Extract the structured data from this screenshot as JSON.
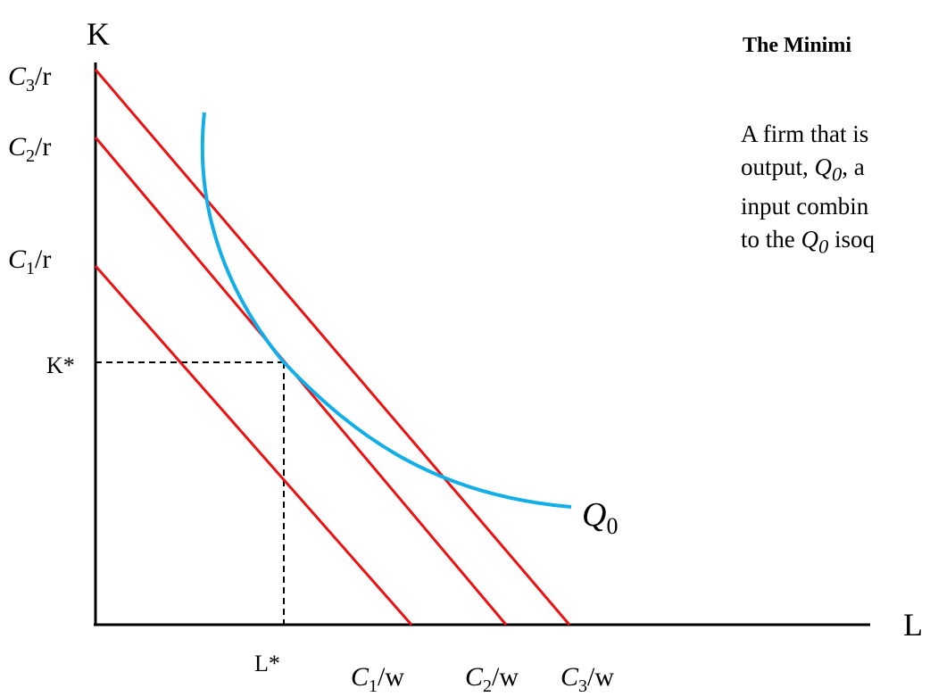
{
  "diagram": {
    "axis_labels": {
      "y": "K",
      "x": "L"
    },
    "y_intercept_labels": [
      {
        "base": "C",
        "sub": "3",
        "suffix": "/r"
      },
      {
        "base": "C",
        "sub": "2",
        "suffix": "/r"
      },
      {
        "base": "C",
        "sub": "1",
        "suffix": "/r"
      }
    ],
    "x_intercept_labels": [
      {
        "base": "C",
        "sub": "1",
        "suffix": "/w"
      },
      {
        "base": "C",
        "sub": "2",
        "suffix": "/w"
      },
      {
        "base": "C",
        "sub": "3",
        "suffix": "/w"
      }
    ],
    "optimum_labels": {
      "k_star": "K*",
      "l_star": "L*"
    },
    "isoquant_label": {
      "base": "Q",
      "sub": "0"
    },
    "colors": {
      "isocost": "#ee1111",
      "isoquant": "#12aee8",
      "axes": "#000000"
    }
  },
  "text_panel": {
    "heading": "The Minimi",
    "lines": [
      {
        "before": "A firm that is",
        "math_base": "",
        "math_sub": "",
        "after": ""
      },
      {
        "before": "output, ",
        "math_base": "Q",
        "math_sub": "0",
        "after": ", a"
      },
      {
        "before": "input combin",
        "math_base": "",
        "math_sub": "",
        "after": ""
      },
      {
        "before": "to the ",
        "math_base": "Q",
        "math_sub": "0",
        "after": " isoq"
      }
    ]
  }
}
